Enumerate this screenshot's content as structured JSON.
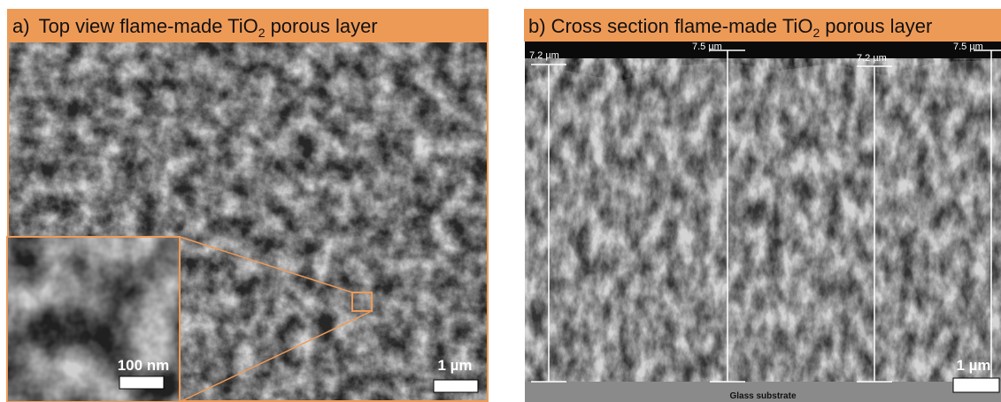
{
  "panels": [
    {
      "label": "a)",
      "title": "Top view flame-made TiO",
      "subscript": "2",
      "title_end": "porous layer",
      "scale_bar": "1 µm",
      "inset_scale_bar": "100 nm"
    },
    {
      "label": "b)",
      "title": "Cross section flame-made TiO",
      "subscript": "2",
      "title_end": "porous layer",
      "scale_bar": "1 µm",
      "measurements": [
        "7.2 µm",
        "7.5 µm",
        "7.2 µm",
        "7.5 µm"
      ],
      "substrate": "Glass substrate"
    }
  ]
}
